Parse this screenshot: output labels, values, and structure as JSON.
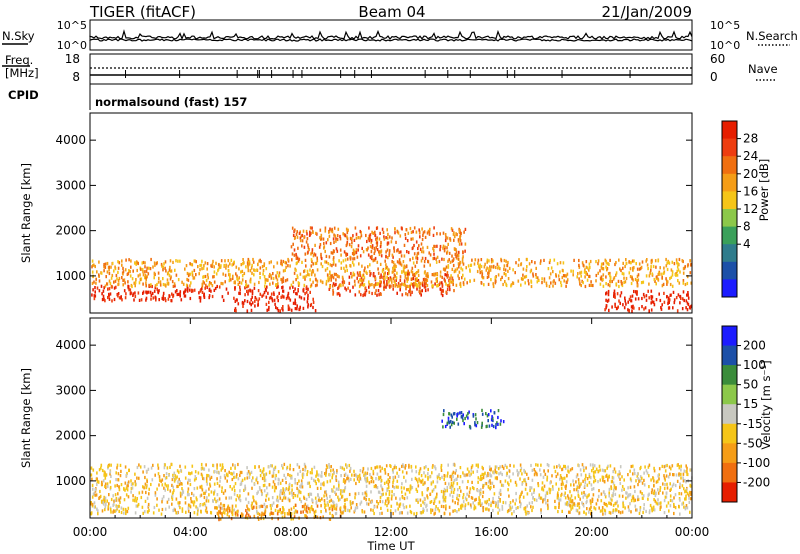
{
  "header": {
    "station": "TIGER (fitACF)",
    "beam": "Beam 04",
    "date": "21/Jan/2009"
  },
  "summary_panels": {
    "noise_sky_label": "N.Sky",
    "noise_sky_ticks": [
      "10^5",
      "10^0"
    ],
    "noise_search_label": "N.Search",
    "noise_search_ticks": [
      "10^5",
      "10^0"
    ],
    "freq_label_1": "Freq.",
    "freq_label_2": "[MHz]",
    "freq_ticks": [
      "18",
      "8"
    ],
    "nave_label": "Nave",
    "nave_ticks": [
      "60",
      "0"
    ],
    "cpid_label": "CPID",
    "cpid_value": "normalsound (fast) 157"
  },
  "chart_data": [
    {
      "type": "heatmap",
      "parameter": "Power",
      "ylabel": "Slant Range [km]",
      "ylim": [
        180,
        4600
      ],
      "yticks": [
        "1000",
        "2000",
        "3000",
        "4000"
      ],
      "xlim": [
        "00:00",
        "24:00"
      ],
      "colorbar_label": "Power [dB]",
      "colorbar_ticks": [
        "28",
        "24",
        "20",
        "16",
        "12",
        "8",
        "4"
      ],
      "colorbar_colors": [
        "#1c1cff",
        "#1c50a8",
        "#2f7c8c",
        "#3aa05a",
        "#8cc84a",
        "#f5c518",
        "#f59d17",
        "#f06f10",
        "#ee3d10",
        "#e61e00"
      ],
      "scatter_regions": [
        {
          "t_start": 0.0,
          "t_end": 5.5,
          "range_min": 480,
          "range_max": 820,
          "level": "28"
        },
        {
          "t_start": 5.7,
          "t_end": 9.0,
          "range_min": 250,
          "range_max": 800,
          "level": "28"
        },
        {
          "t_start": 9.5,
          "t_end": 14.5,
          "range_min": 600,
          "range_max": 1100,
          "level": "24"
        },
        {
          "t_start": 20.5,
          "t_end": 24.0,
          "range_min": 250,
          "range_max": 700,
          "level": "28"
        },
        {
          "t_start": 0.0,
          "t_end": 24.0,
          "range_min": 800,
          "range_max": 1400,
          "level": "16"
        },
        {
          "t_start": 8.0,
          "t_end": 15.0,
          "range_min": 1400,
          "range_max": 2100,
          "level": "20"
        }
      ]
    },
    {
      "type": "heatmap",
      "parameter": "Velocity",
      "ylabel": "Slant Range [km]",
      "ylim": [
        180,
        4600
      ],
      "yticks": [
        "1000",
        "2000",
        "3000",
        "4000"
      ],
      "xlim": [
        "00:00",
        "24:00"
      ],
      "xticks": [
        "00:00",
        "04:00",
        "08:00",
        "12:00",
        "16:00",
        "20:00",
        "00:00"
      ],
      "xlabel": "Time UT",
      "colorbar_label": "Velocity [m s⁻¹]",
      "colorbar_ticks": [
        "200",
        "100",
        "50",
        "15",
        "-15",
        "-50",
        "-100",
        "-200"
      ],
      "colorbar_colors": [
        "#1c1cff",
        "#1c50a8",
        "#3a8c3a",
        "#8cc84a",
        "#c8c8c0",
        "#f5c518",
        "#f59d17",
        "#f06f10",
        "#e61e00"
      ],
      "scatter_regions": [
        {
          "t_start": 0.0,
          "t_end": 24.0,
          "range_min": 300,
          "range_max": 1400,
          "level": "-15"
        },
        {
          "t_start": 5.0,
          "t_end": 10.0,
          "range_min": 180,
          "range_max": 500,
          "level": "-50"
        },
        {
          "t_start": 14.0,
          "t_end": 16.5,
          "range_min": 2200,
          "range_max": 2600,
          "level": "200"
        }
      ]
    }
  ],
  "colors": {
    "power_red": "#e61e00",
    "ground_gray": "#c8c8c0"
  }
}
